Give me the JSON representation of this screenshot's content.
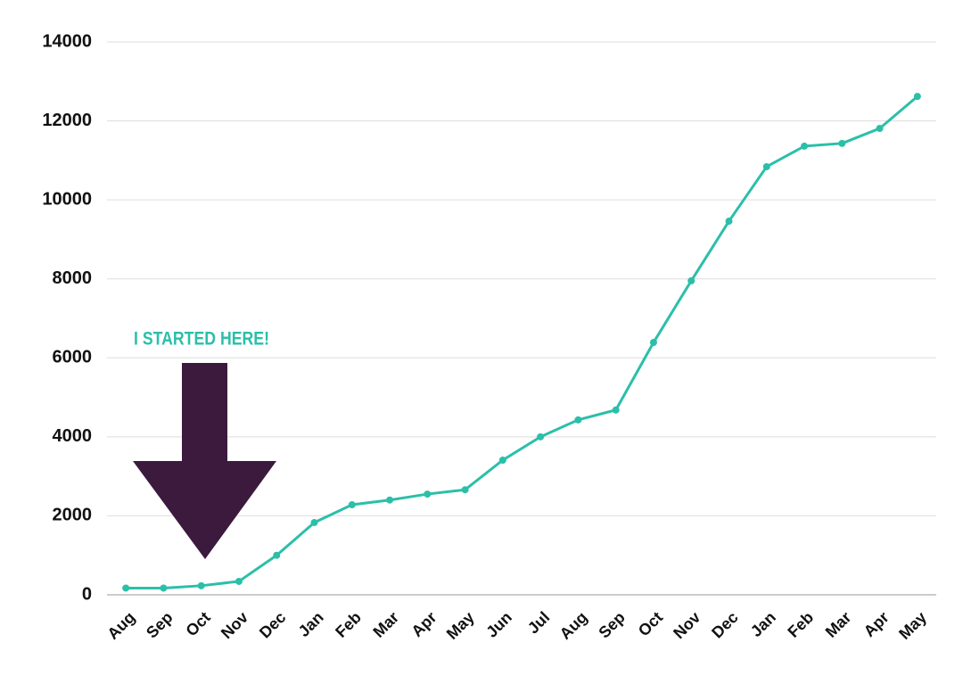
{
  "chart_data": {
    "type": "line",
    "categories": [
      "Aug",
      "Sep",
      "Oct",
      "Nov",
      "Dec",
      "Jan",
      "Feb",
      "Mar",
      "Apr",
      "May",
      "Jun",
      "Jul",
      "Aug",
      "Sep",
      "Oct",
      "Nov",
      "Dec",
      "Jan",
      "Feb",
      "Mar",
      "Apr",
      "May"
    ],
    "values": [
      170,
      170,
      230,
      340,
      1000,
      1830,
      2280,
      2400,
      2550,
      2660,
      3410,
      4000,
      4430,
      4680,
      6390,
      7950,
      9460,
      10840,
      11360,
      11430,
      11810,
      12620
    ],
    "color": "#2bbfa9",
    "ylim": [
      0,
      14000
    ],
    "yticks": [
      0,
      2000,
      4000,
      6000,
      8000,
      10000,
      12000,
      14000
    ],
    "grid": true,
    "annotation": "I STARTED HERE!"
  }
}
